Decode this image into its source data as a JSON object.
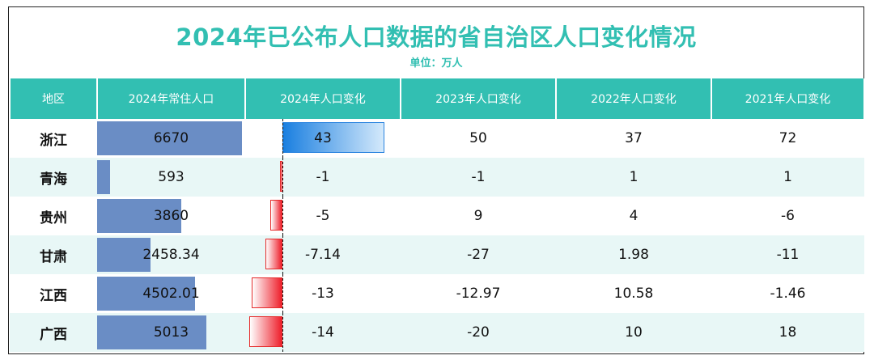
{
  "title": "2024年已公布人口数据的省自治区人口变化情况",
  "subtitle": "单位：万人",
  "columns": [
    "地区",
    "2024年常住人口",
    "2024年人口变化",
    "2023年人口变化",
    "2022年人口变化",
    "2021年人口变化"
  ],
  "colors": {
    "accent": "#32bfb2",
    "pop_bar": "#6a8dc5",
    "pos_bar": "#1a7fe0",
    "neg_bar": "#ee1f2b",
    "row_alt": "#e8f7f6"
  },
  "chart_data": {
    "type": "table",
    "title": "2024年已公布人口数据的省自治区人口变化情况",
    "subtitle": "单位：万人",
    "rows": [
      {
        "region": "浙江",
        "pop_2024": 6670,
        "pop_label": "6670",
        "chg_2024": 43,
        "chg_2024_label": "43",
        "chg_2023": "50",
        "chg_2022": "37",
        "chg_2021": "72"
      },
      {
        "region": "青海",
        "pop_2024": 593,
        "pop_label": "593",
        "chg_2024": -1,
        "chg_2024_label": "-1",
        "chg_2023": "-1",
        "chg_2022": "1",
        "chg_2021": "1"
      },
      {
        "region": "贵州",
        "pop_2024": 3860,
        "pop_label": "3860",
        "chg_2024": -5,
        "chg_2024_label": "-5",
        "chg_2023": "9",
        "chg_2022": "4",
        "chg_2021": "-6"
      },
      {
        "region": "甘肃",
        "pop_2024": 2458.34,
        "pop_label": "2458.34",
        "chg_2024": -7.14,
        "chg_2024_label": "-7.14",
        "chg_2023": "-27",
        "chg_2022": "1.98",
        "chg_2021": "-11"
      },
      {
        "region": "江西",
        "pop_2024": 4502.01,
        "pop_label": "4502.01",
        "chg_2024": -13,
        "chg_2024_label": "-13",
        "chg_2023": "-12.97",
        "chg_2022": "10.58",
        "chg_2021": "-1.46"
      },
      {
        "region": "广西",
        "pop_2024": 5013,
        "pop_label": "5013",
        "chg_2024": -14,
        "chg_2024_label": "-14",
        "chg_2023": "-20",
        "chg_2022": "10",
        "chg_2021": "18"
      }
    ]
  }
}
